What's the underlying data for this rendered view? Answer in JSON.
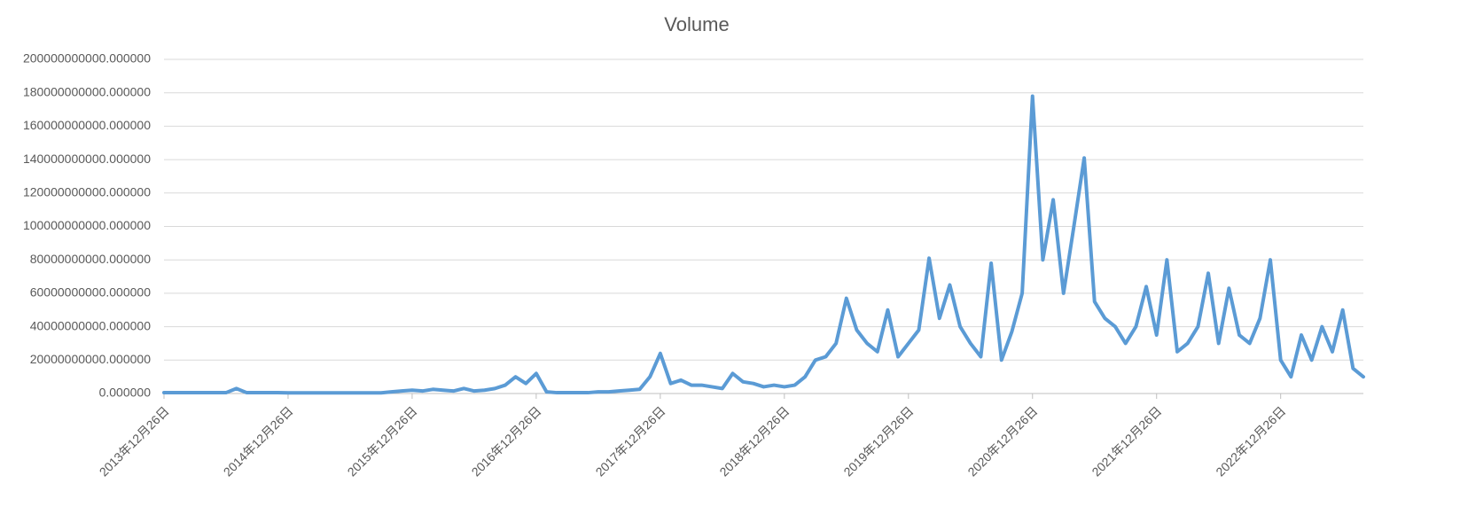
{
  "chart_data": {
    "type": "line",
    "title": "Volume",
    "categories": [
      "2013年12月26日",
      null,
      null,
      null,
      null,
      null,
      null,
      null,
      null,
      null,
      null,
      null,
      "2014年12月26日",
      null,
      null,
      null,
      null,
      null,
      null,
      null,
      null,
      null,
      null,
      null,
      "2015年12月26日",
      null,
      null,
      null,
      null,
      null,
      null,
      null,
      null,
      null,
      null,
      null,
      "2016年12月26日",
      null,
      null,
      null,
      null,
      null,
      null,
      null,
      null,
      null,
      null,
      null,
      "2017年12月26日",
      null,
      null,
      null,
      null,
      null,
      null,
      null,
      null,
      null,
      null,
      null,
      "2018年12月26日",
      null,
      null,
      null,
      null,
      null,
      null,
      null,
      null,
      null,
      null,
      null,
      "2019年12月26日",
      null,
      null,
      null,
      null,
      null,
      null,
      null,
      null,
      null,
      null,
      null,
      "2020年12月26日",
      null,
      null,
      null,
      null,
      null,
      null,
      null,
      null,
      null,
      null,
      null,
      "2021年12月26日",
      null,
      null,
      null,
      null,
      null,
      null,
      null,
      null,
      null,
      null,
      null,
      "2022年12月26日",
      null,
      null,
      null,
      null,
      null,
      null,
      null,
      null
    ],
    "values": [
      500000000.0,
      500000000.0,
      500000000.0,
      500000000.0,
      500000000.0,
      500000000.0,
      500000000.0,
      3000000000.0,
      500000000.0,
      500000000.0,
      500000000.0,
      500000000.0,
      400000000.0,
      400000000.0,
      400000000.0,
      400000000.0,
      400000000.0,
      400000000.0,
      400000000.0,
      400000000.0,
      400000000.0,
      400000000.0,
      1000000000.0,
      1500000000.0,
      2000000000.0,
      1500000000.0,
      2500000000.0,
      2000000000.0,
      1500000000.0,
      3000000000.0,
      1500000000.0,
      2000000000.0,
      3000000000.0,
      5000000000.0,
      10000000000.0,
      6000000000.0,
      12000000000.0,
      1000000000.0,
      500000000.0,
      500000000.0,
      500000000.0,
      500000000.0,
      1000000000.0,
      1000000000.0,
      1500000000.0,
      2000000000.0,
      2500000000.0,
      10000000000.0,
      24000000000.0,
      6000000000.0,
      8000000000.0,
      5000000000.0,
      5000000000.0,
      4000000000.0,
      3000000000.0,
      12000000000.0,
      7000000000.0,
      6000000000.0,
      4000000000.0,
      5000000000.0,
      4000000000.0,
      5000000000.0,
      10000000000.0,
      20000000000.0,
      22000000000.0,
      30000000000.0,
      57000000000.0,
      38000000000.0,
      30000000000.0,
      25000000000.0,
      50000000000.0,
      22000000000.0,
      30000000000.0,
      38000000000.0,
      81000000000.0,
      45000000000.0,
      65000000000.0,
      40000000000.0,
      30000000000.0,
      22000000000.0,
      78000000000.0,
      20000000000.0,
      37000000000.0,
      60000000000.0,
      178000000000.0,
      80000000000.0,
      116000000000.0,
      60000000000.0,
      100000000000.0,
      141000000000.0,
      55000000000.0,
      45000000000.0,
      40000000000.0,
      30000000000.0,
      40000000000.0,
      64000000000.0,
      35000000000.0,
      80000000000.0,
      25000000000.0,
      30000000000.0,
      40000000000.0,
      72000000000.0,
      30000000000.0,
      63000000000.0,
      35000000000.0,
      30000000000.0,
      45000000000.0,
      80000000000.0,
      20000000000.0,
      10000000000.0,
      35000000000.0,
      20000000000.0,
      40000000000.0,
      25000000000.0,
      50000000000.0,
      15000000000.0,
      10000000000.0
    ],
    "color": "#5b9bd5",
    "ylim": [
      0,
      200000000000
    ],
    "yticks": [
      {
        "value": 0,
        "label": "0.000000"
      },
      {
        "value": 20000000000,
        "label": "20000000000.000000"
      },
      {
        "value": 40000000000,
        "label": "40000000000.000000"
      },
      {
        "value": 60000000000,
        "label": "60000000000.000000"
      },
      {
        "value": 80000000000,
        "label": "80000000000.000000"
      },
      {
        "value": 100000000000,
        "label": "100000000000.000000"
      },
      {
        "value": 120000000000,
        "label": "120000000000.000000"
      },
      {
        "value": 140000000000,
        "label": "140000000000.000000"
      },
      {
        "value": 160000000000,
        "label": "160000000000.000000"
      },
      {
        "value": 180000000000,
        "label": "180000000000.000000"
      },
      {
        "value": 200000000000,
        "label": "200000000000.000000"
      }
    ],
    "grid": true
  }
}
